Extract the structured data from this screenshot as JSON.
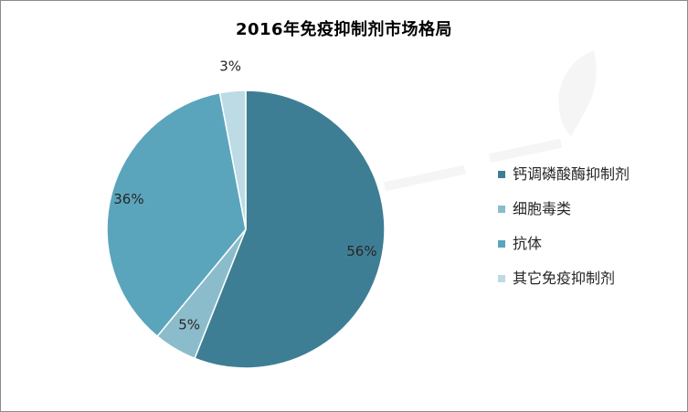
{
  "chart_data": {
    "type": "pie",
    "title": "2016年免疫抑制剂市场格局",
    "categories": [
      "钙调磷酸酶抑制剂",
      "细胞毒类",
      "抗体",
      "其它免疫抑制剂"
    ],
    "values": [
      56,
      5,
      36,
      3
    ],
    "labels": [
      "56%",
      "5%",
      "36%",
      "3%"
    ],
    "colors": [
      "#3e7e95",
      "#8bbccb",
      "#5ba5bc",
      "#bcdbe5"
    ],
    "legend_position": "right"
  }
}
